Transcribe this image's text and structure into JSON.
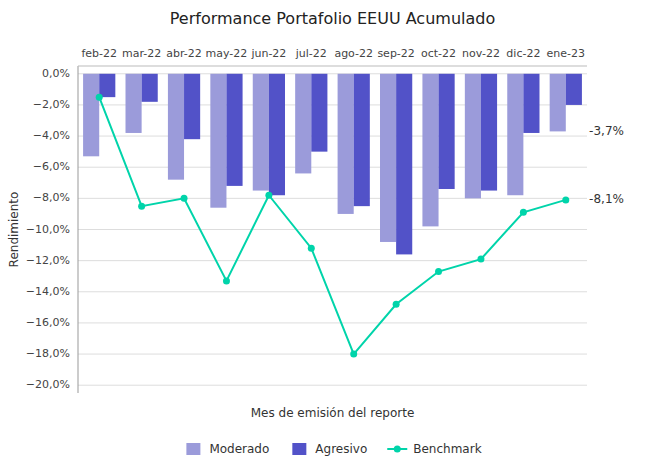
{
  "chart_data": {
    "type": "bar",
    "title": "Performance Portafolio EEUU Acumulado",
    "x_label": "Mes de emisión del reporte",
    "y_label": "Rendimiento",
    "categories": [
      "feb-22",
      "mar-22",
      "abr-22",
      "may-22",
      "jun-22",
      "jul-22",
      "ago-22",
      "sep-22",
      "oct-22",
      "nov-22",
      "dic-22",
      "ene-23"
    ],
    "series": [
      {
        "name": "Moderado",
        "type": "bar",
        "color": "#9b9bda",
        "values": [
          -5.3,
          -3.8,
          -6.8,
          -8.6,
          -7.5,
          -6.4,
          -9.0,
          -10.8,
          -9.8,
          -8.0,
          -7.8,
          -3.7
        ]
      },
      {
        "name": "Agresivo",
        "type": "bar",
        "color": "#5252c8",
        "values": [
          -1.5,
          -1.8,
          -4.2,
          -7.2,
          -7.8,
          -5.0,
          -8.5,
          -11.6,
          -7.4,
          -7.5,
          -3.8,
          -2.0
        ]
      },
      {
        "name": "Benchmark",
        "type": "line",
        "color": "#00d4aa",
        "marker": "circle",
        "line_style": "solid",
        "values": [
          -1.5,
          -8.5,
          -8.0,
          -13.3,
          -7.8,
          -11.2,
          -18.0,
          -14.8,
          -12.7,
          -11.9,
          -8.9,
          -8.1
        ]
      }
    ],
    "annotations": [
      {
        "text": "-3,7%",
        "x": "ene-23",
        "y": -3.7
      },
      {
        "text": "-8,1%",
        "x": "ene-23",
        "y": -8.1
      }
    ],
    "ylim": [
      -20.5,
      0.5
    ],
    "yticks": [
      {
        "value": 0.0,
        "label": "0,0%"
      },
      {
        "value": -2.0,
        "label": "−2,0%"
      },
      {
        "value": -4.0,
        "label": "−4,0%"
      },
      {
        "value": -6.0,
        "label": "−6,0%"
      },
      {
        "value": -8.0,
        "label": "−8,0%"
      },
      {
        "value": -10.0,
        "label": "−10,0%"
      },
      {
        "value": -12.0,
        "label": "−12,0%"
      },
      {
        "value": -14.0,
        "label": "−14,0%"
      },
      {
        "value": -16.0,
        "label": "−16,0%"
      },
      {
        "value": -18.0,
        "label": "−18,0%"
      },
      {
        "value": -20.0,
        "label": "−20,0%"
      }
    ],
    "grid": true,
    "legend": "bottom"
  }
}
